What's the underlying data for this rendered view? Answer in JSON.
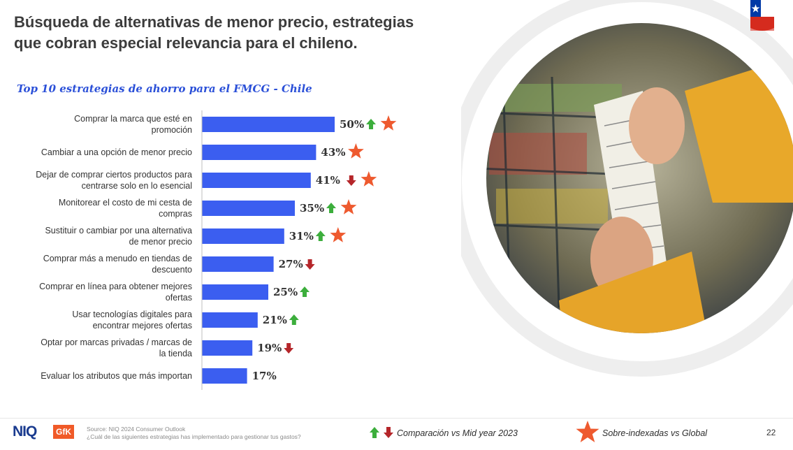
{
  "header": {
    "title_line1": "Búsqueda de alternativas de menor precio, estrategias",
    "title_line2": "que cobran especial relevancia para el chileno."
  },
  "colors": {
    "bar": "#3b5ef0",
    "up": "#3cae3c",
    "down": "#b5262a",
    "star": "#ee5a2f",
    "title_blue": "#2b50d8"
  },
  "chart_data": {
    "type": "bar",
    "orientation": "horizontal",
    "title": "Top 10 estrategias de ahorro para el FMCG - Chile",
    "unit": "%",
    "categories": [
      [
        "Comprar la marca que esté en",
        "promoción"
      ],
      [
        "Cambiar a una opción de menor precio"
      ],
      [
        "Dejar de comprar ciertos productos para",
        "centrarse solo en lo esencial"
      ],
      [
        "Monitorear el costo de mi cesta de",
        "compras"
      ],
      [
        "Sustituir o cambiar por una alternativa",
        "de menor precio"
      ],
      [
        "Comprar más a menudo en tiendas de",
        "descuento"
      ],
      [
        "Comprar en línea para obtener mejores",
        "ofertas"
      ],
      [
        "Usar tecnologías digitales para",
        "encontrar mejores ofertas"
      ],
      [
        "Optar por marcas privadas / marcas de",
        "la tienda"
      ],
      [
        "Evaluar los atributos que más importan"
      ]
    ],
    "values": [
      50,
      43,
      41,
      35,
      31,
      27,
      25,
      21,
      19,
      17
    ],
    "labels": [
      "50%",
      "43%",
      "41%",
      "35%",
      "31%",
      "27%",
      "25%",
      "21%",
      "19%",
      "17%"
    ],
    "trend_vs_mid_year_2023": [
      "up",
      "none",
      "down",
      "up",
      "up",
      "down",
      "up",
      "up",
      "down",
      "none"
    ],
    "over_indexed_vs_global": [
      true,
      true,
      true,
      true,
      true,
      false,
      false,
      false,
      false,
      false
    ],
    "xlim": [
      0,
      100
    ],
    "grid": false
  },
  "footer": {
    "logo_text": "NIQ",
    "logo_badge": "GfK",
    "source_line1": "Source: NIQ 2024 Consumer Outlook",
    "source_line2": "¿Cuál de las siguientes estrategias has implementado para gestionar tus gastos?",
    "legend_comparison": "Comparación vs Mid year 2023",
    "legend_over_indexed": "Sobre-indexadas vs Global",
    "page_number": "22"
  }
}
